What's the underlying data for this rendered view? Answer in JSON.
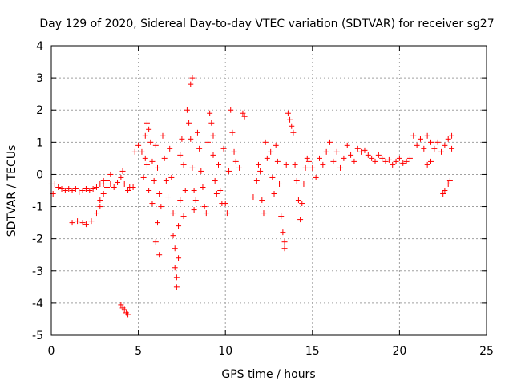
{
  "chart_data": {
    "type": "scatter",
    "title": "Day 129 of 2020, Sidereal Day-to-day VTEC variation (SDTVAR) for receiver sg27",
    "xlabel": "GPS time / hours",
    "ylabel": "SDTVAR / TECUs",
    "xlim": [
      0,
      25
    ],
    "ylim": [
      -5,
      4
    ],
    "xticks": [
      0,
      5,
      10,
      15,
      20,
      25
    ],
    "yticks": [
      -5,
      -4,
      -3,
      -2,
      -1,
      0,
      1,
      2,
      3,
      4
    ],
    "grid": true,
    "marker": "+",
    "color": "#ff0000",
    "series": [
      {
        "name": "sg27",
        "points": [
          [
            0.0,
            -0.3
          ],
          [
            0.1,
            -0.6
          ],
          [
            0.2,
            -0.3
          ],
          [
            0.4,
            -0.4
          ],
          [
            0.6,
            -0.45
          ],
          [
            0.8,
            -0.5
          ],
          [
            1.0,
            -0.45
          ],
          [
            1.2,
            -0.5
          ],
          [
            1.4,
            -0.45
          ],
          [
            1.6,
            -0.55
          ],
          [
            1.8,
            -0.5
          ],
          [
            2.0,
            -0.45
          ],
          [
            2.2,
            -0.5
          ],
          [
            2.4,
            -0.45
          ],
          [
            2.6,
            -0.4
          ],
          [
            2.8,
            -0.3
          ],
          [
            3.0,
            -0.2
          ],
          [
            3.2,
            -0.4
          ],
          [
            3.4,
            -0.3
          ],
          [
            3.6,
            -0.4
          ],
          [
            3.8,
            -0.25
          ],
          [
            4.0,
            -0.1
          ],
          [
            4.1,
            0.1
          ],
          [
            4.2,
            -0.3
          ],
          [
            4.4,
            -0.5
          ],
          [
            4.5,
            -0.4
          ],
          [
            1.2,
            -1.5
          ],
          [
            1.5,
            -1.45
          ],
          [
            1.8,
            -1.5
          ],
          [
            2.0,
            -1.55
          ],
          [
            2.3,
            -1.45
          ],
          [
            2.6,
            -1.2
          ],
          [
            2.8,
            -1.0
          ],
          [
            3.0,
            -0.6
          ],
          [
            3.2,
            -0.2
          ],
          [
            3.4,
            0.0
          ],
          [
            3.0,
            -0.3
          ],
          [
            2.8,
            -0.8
          ],
          [
            4.0,
            -4.05
          ],
          [
            4.1,
            -4.15
          ],
          [
            4.2,
            -4.2
          ],
          [
            4.3,
            -4.3
          ],
          [
            4.4,
            -4.35
          ],
          [
            4.7,
            -0.4
          ],
          [
            4.8,
            0.7
          ],
          [
            5.0,
            0.9
          ],
          [
            5.2,
            0.7
          ],
          [
            5.4,
            0.5
          ],
          [
            5.4,
            1.2
          ],
          [
            5.5,
            1.6
          ],
          [
            5.6,
            1.4
          ],
          [
            5.7,
            1.0
          ],
          [
            5.5,
            0.3
          ],
          [
            5.3,
            -0.1
          ],
          [
            5.8,
            0.4
          ],
          [
            5.9,
            -0.2
          ],
          [
            5.6,
            -0.5
          ],
          [
            5.8,
            -0.9
          ],
          [
            6.0,
            0.9
          ],
          [
            6.1,
            0.2
          ],
          [
            6.2,
            -0.6
          ],
          [
            6.3,
            -1.0
          ],
          [
            6.1,
            -1.5
          ],
          [
            6.0,
            -2.1
          ],
          [
            6.2,
            -2.5
          ],
          [
            6.4,
            1.2
          ],
          [
            6.5,
            0.5
          ],
          [
            6.6,
            -0.2
          ],
          [
            6.7,
            -0.7
          ],
          [
            6.8,
            0.8
          ],
          [
            6.9,
            -0.1
          ],
          [
            7.0,
            -1.2
          ],
          [
            7.0,
            -1.9
          ],
          [
            7.1,
            -2.3
          ],
          [
            7.1,
            -2.9
          ],
          [
            7.2,
            -3.2
          ],
          [
            7.2,
            -3.5
          ],
          [
            7.3,
            -2.6
          ],
          [
            7.3,
            -1.6
          ],
          [
            7.4,
            -0.8
          ],
          [
            7.4,
            0.6
          ],
          [
            7.5,
            1.1
          ],
          [
            7.6,
            0.3
          ],
          [
            7.7,
            -0.5
          ],
          [
            7.6,
            -1.3
          ],
          [
            7.8,
            2.0
          ],
          [
            7.9,
            1.6
          ],
          [
            8.0,
            2.8
          ],
          [
            8.1,
            3.0
          ],
          [
            8.0,
            1.1
          ],
          [
            8.1,
            0.2
          ],
          [
            8.2,
            -0.5
          ],
          [
            8.2,
            -1.1
          ],
          [
            8.3,
            -0.8
          ],
          [
            8.4,
            1.3
          ],
          [
            8.5,
            0.8
          ],
          [
            8.6,
            0.1
          ],
          [
            8.7,
            -0.4
          ],
          [
            8.8,
            -1.0
          ],
          [
            8.9,
            -1.2
          ],
          [
            9.0,
            1.0
          ],
          [
            9.1,
            1.9
          ],
          [
            9.2,
            1.6
          ],
          [
            9.3,
            0.6
          ],
          [
            9.4,
            -0.2
          ],
          [
            9.5,
            -0.6
          ],
          [
            9.3,
            1.2
          ],
          [
            9.6,
            0.3
          ],
          [
            9.7,
            -0.5
          ],
          [
            9.8,
            -0.9
          ],
          [
            9.9,
            0.8
          ],
          [
            10.0,
            -0.9
          ],
          [
            10.1,
            -1.2
          ],
          [
            10.2,
            0.1
          ],
          [
            10.3,
            2.0
          ],
          [
            10.4,
            1.3
          ],
          [
            10.5,
            0.7
          ],
          [
            10.6,
            0.4
          ],
          [
            10.8,
            0.2
          ],
          [
            11.0,
            1.9
          ],
          [
            11.1,
            1.8
          ],
          [
            11.6,
            -0.7
          ],
          [
            11.8,
            -0.2
          ],
          [
            11.9,
            0.3
          ],
          [
            12.0,
            0.1
          ],
          [
            12.1,
            -0.8
          ],
          [
            12.2,
            -1.2
          ],
          [
            12.3,
            1.0
          ],
          [
            12.4,
            0.5
          ],
          [
            12.6,
            0.7
          ],
          [
            12.7,
            -0.1
          ],
          [
            12.8,
            -0.6
          ],
          [
            12.9,
            0.9
          ],
          [
            13.0,
            0.4
          ],
          [
            13.1,
            -0.3
          ],
          [
            13.2,
            -1.3
          ],
          [
            13.3,
            -1.8
          ],
          [
            13.4,
            -2.1
          ],
          [
            13.4,
            -2.3
          ],
          [
            13.5,
            0.3
          ],
          [
            13.6,
            1.9
          ],
          [
            13.7,
            1.7
          ],
          [
            13.8,
            1.5
          ],
          [
            13.9,
            1.3
          ],
          [
            14.0,
            0.3
          ],
          [
            14.1,
            -0.2
          ],
          [
            14.2,
            -0.8
          ],
          [
            14.3,
            -1.4
          ],
          [
            14.4,
            -0.9
          ],
          [
            14.5,
            -0.3
          ],
          [
            14.6,
            0.2
          ],
          [
            14.7,
            0.5
          ],
          [
            14.8,
            0.4
          ],
          [
            15.0,
            0.2
          ],
          [
            15.2,
            -0.1
          ],
          [
            15.4,
            0.5
          ],
          [
            15.6,
            0.3
          ],
          [
            15.8,
            0.7
          ],
          [
            16.0,
            1.0
          ],
          [
            16.2,
            0.4
          ],
          [
            16.4,
            0.7
          ],
          [
            16.6,
            0.2
          ],
          [
            16.8,
            0.5
          ],
          [
            17.0,
            0.9
          ],
          [
            17.2,
            0.6
          ],
          [
            17.4,
            0.4
          ],
          [
            17.6,
            0.8
          ],
          [
            17.8,
            0.7
          ],
          [
            18.0,
            0.75
          ],
          [
            18.2,
            0.6
          ],
          [
            18.4,
            0.5
          ],
          [
            18.6,
            0.4
          ],
          [
            18.8,
            0.6
          ],
          [
            19.0,
            0.5
          ],
          [
            19.2,
            0.4
          ],
          [
            19.4,
            0.45
          ],
          [
            19.6,
            0.3
          ],
          [
            19.8,
            0.4
          ],
          [
            20.0,
            0.5
          ],
          [
            20.2,
            0.35
          ],
          [
            20.4,
            0.4
          ],
          [
            20.6,
            0.5
          ],
          [
            20.8,
            1.2
          ],
          [
            21.0,
            0.9
          ],
          [
            21.2,
            1.1
          ],
          [
            21.4,
            0.8
          ],
          [
            21.6,
            1.2
          ],
          [
            21.8,
            1.0
          ],
          [
            22.0,
            0.8
          ],
          [
            22.2,
            1.0
          ],
          [
            22.4,
            0.7
          ],
          [
            22.6,
            0.9
          ],
          [
            22.8,
            1.1
          ],
          [
            23.0,
            1.2
          ],
          [
            23.0,
            0.8
          ],
          [
            22.9,
            -0.2
          ],
          [
            22.8,
            -0.3
          ],
          [
            22.6,
            -0.5
          ],
          [
            22.5,
            -0.6
          ],
          [
            21.6,
            0.3
          ],
          [
            21.8,
            0.4
          ]
        ]
      }
    ]
  }
}
